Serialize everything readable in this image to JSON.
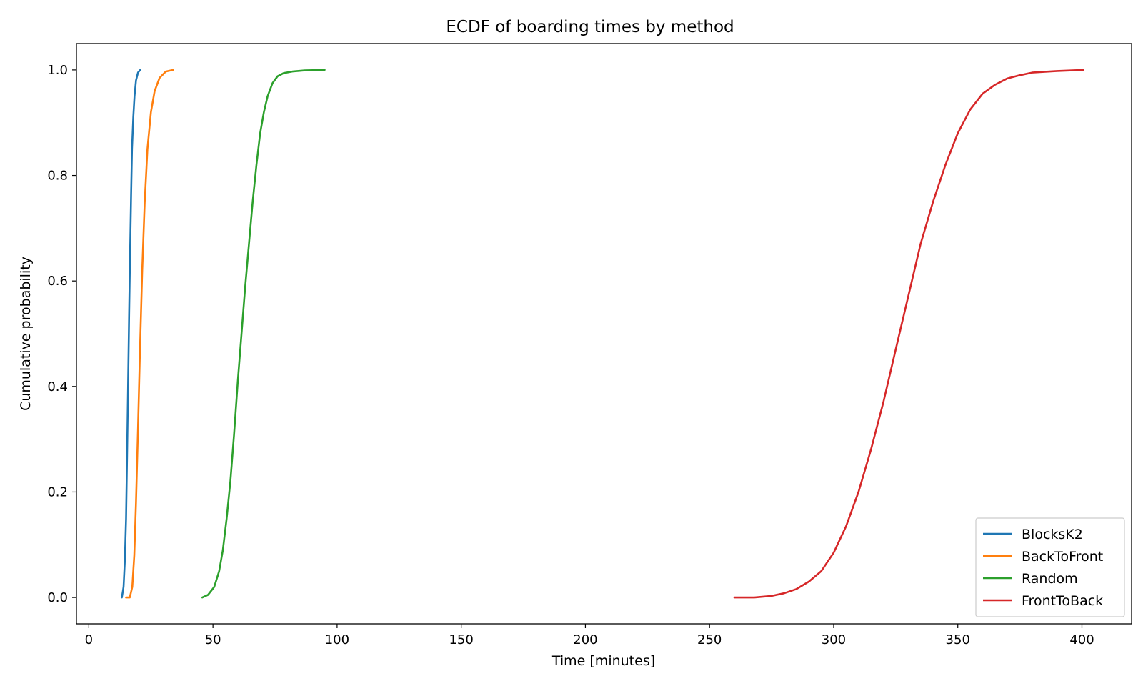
{
  "chart_data": {
    "type": "line",
    "title": "ECDF of boarding times by method",
    "xlabel": "Time [minutes]",
    "ylabel": "Cumulative probability",
    "xlim": [
      -5,
      420
    ],
    "ylim": [
      -0.05,
      1.05
    ],
    "xticks": [
      0,
      50,
      100,
      150,
      200,
      250,
      300,
      350,
      400
    ],
    "xtick_labels": [
      "0",
      "50",
      "100",
      "150",
      "200",
      "250",
      "300",
      "350",
      "400"
    ],
    "yticks": [
      0.0,
      0.2,
      0.4,
      0.6,
      0.8,
      1.0
    ],
    "ytick_labels": [
      "0.0",
      "0.2",
      "0.4",
      "0.6",
      "0.8",
      "1.0"
    ],
    "grid": false,
    "legend_position": "lower-right",
    "series": [
      {
        "name": "BlocksK2",
        "color": "#1f77b4",
        "x": [
          13.3,
          14.0,
          14.5,
          15.0,
          15.4,
          15.8,
          16.2,
          16.6,
          17.0,
          17.4,
          17.9,
          18.4,
          19.0,
          19.8,
          20.7
        ],
        "y": [
          0.0,
          0.02,
          0.07,
          0.15,
          0.27,
          0.4,
          0.53,
          0.65,
          0.76,
          0.85,
          0.91,
          0.95,
          0.98,
          0.995,
          1.0
        ]
      },
      {
        "name": "BackToFront",
        "color": "#ff7f0e",
        "x": [
          15.0,
          16.5,
          17.5,
          18.3,
          19.0,
          19.8,
          20.6,
          21.5,
          22.5,
          23.6,
          25.0,
          26.5,
          28.5,
          31.0,
          34.0
        ],
        "y": [
          0.0,
          0.0,
          0.02,
          0.08,
          0.18,
          0.32,
          0.47,
          0.62,
          0.75,
          0.85,
          0.92,
          0.96,
          0.985,
          0.997,
          1.0
        ]
      },
      {
        "name": "Random",
        "color": "#2ca02c",
        "x": [
          45.7,
          48.0,
          50.5,
          52.5,
          54.0,
          55.5,
          57.0,
          58.5,
          60.0,
          61.5,
          63.0,
          64.5,
          66.0,
          67.5,
          69.0,
          70.5,
          72.0,
          74.0,
          76.0,
          78.5,
          82.0,
          87.0,
          95.0
        ],
        "y": [
          0.0,
          0.005,
          0.02,
          0.05,
          0.09,
          0.15,
          0.22,
          0.31,
          0.41,
          0.5,
          0.59,
          0.67,
          0.75,
          0.82,
          0.88,
          0.92,
          0.95,
          0.975,
          0.988,
          0.994,
          0.997,
          0.999,
          1.0
        ]
      },
      {
        "name": "FrontToBack",
        "color": "#d62728",
        "x": [
          260.0,
          268.0,
          275.0,
          280.0,
          285.0,
          290.0,
          295.0,
          300.0,
          305.0,
          310.0,
          315.0,
          320.0,
          325.0,
          330.0,
          335.0,
          340.0,
          345.0,
          350.0,
          355.0,
          360.0,
          365.0,
          370.0,
          375.0,
          380.0,
          390.0,
          400.5
        ],
        "y": [
          0.0,
          0.0,
          0.003,
          0.008,
          0.016,
          0.03,
          0.05,
          0.085,
          0.135,
          0.2,
          0.28,
          0.37,
          0.47,
          0.57,
          0.67,
          0.75,
          0.82,
          0.88,
          0.925,
          0.955,
          0.972,
          0.984,
          0.99,
          0.995,
          0.998,
          1.0
        ]
      }
    ]
  }
}
